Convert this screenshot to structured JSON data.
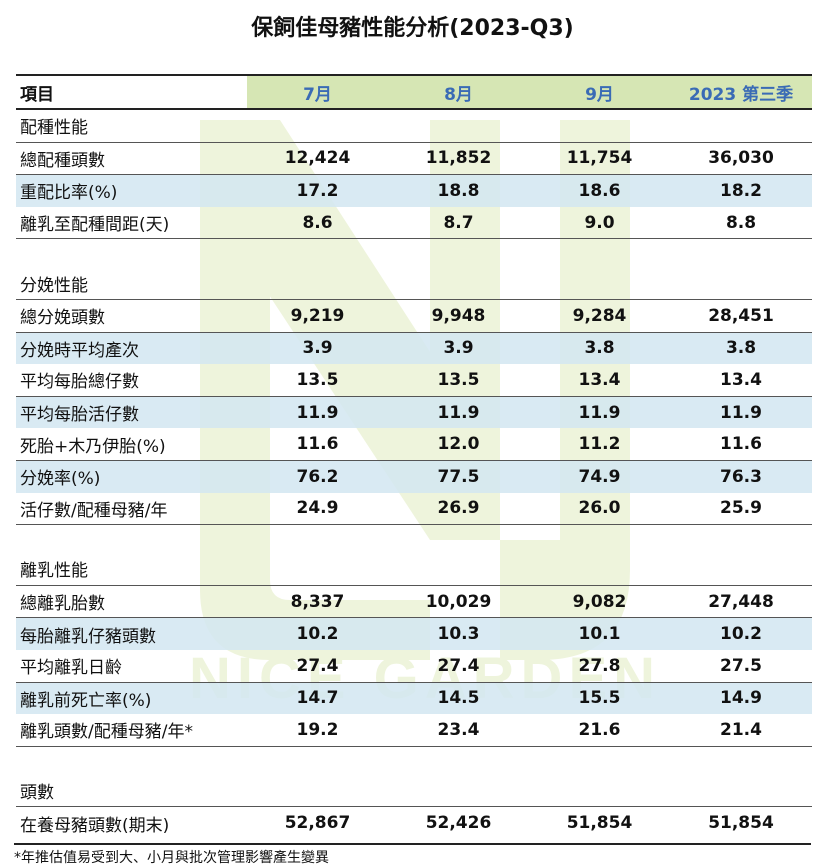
{
  "title": "保飼佳母豬性能分析(2023-Q3)",
  "header": {
    "item": "項目",
    "cols": [
      "7月",
      "8月",
      "9月",
      "2023 第三季"
    ]
  },
  "sections": [
    {
      "name": "配種性能",
      "rows": [
        {
          "label": "總配種頭數",
          "values": [
            "12,424",
            "11,852",
            "11,754",
            "36,030"
          ]
        },
        {
          "label": "重配比率(%)",
          "values": [
            "17.2",
            "18.8",
            "18.6",
            "18.2"
          ]
        },
        {
          "label": "離乳至配種間距(天)",
          "values": [
            "8.6",
            "8.7",
            "9.0",
            "8.8"
          ]
        }
      ]
    },
    {
      "name": "分娩性能",
      "rows": [
        {
          "label": "總分娩頭數",
          "values": [
            "9,219",
            "9,948",
            "9,284",
            "28,451"
          ]
        },
        {
          "label": "分娩時平均產次",
          "values": [
            "3.9",
            "3.9",
            "3.8",
            "3.8"
          ]
        },
        {
          "label": "平均每胎總仔數",
          "values": [
            "13.5",
            "13.5",
            "13.4",
            "13.4"
          ]
        },
        {
          "label": "平均每胎活仔數",
          "values": [
            "11.9",
            "11.9",
            "11.9",
            "11.9"
          ]
        },
        {
          "label": "死胎+木乃伊胎(%)",
          "values": [
            "11.6",
            "12.0",
            "11.2",
            "11.6"
          ]
        },
        {
          "label": "分娩率(%)",
          "values": [
            "76.2",
            "77.5",
            "74.9",
            "76.3"
          ]
        },
        {
          "label": "活仔數/配種母豬/年",
          "values": [
            "24.9",
            "26.9",
            "26.0",
            "25.9"
          ]
        }
      ]
    },
    {
      "name": "離乳性能",
      "rows": [
        {
          "label": "總離乳胎數",
          "values": [
            "8,337",
            "10,029",
            "9,082",
            "27,448"
          ]
        },
        {
          "label": "每胎離乳仔豬頭數",
          "values": [
            "10.2",
            "10.3",
            "10.1",
            "10.2"
          ]
        },
        {
          "label": "平均離乳日齡",
          "values": [
            "27.4",
            "27.4",
            "27.8",
            "27.5"
          ]
        },
        {
          "label": "離乳前死亡率(%)",
          "values": [
            "14.7",
            "14.5",
            "15.5",
            "14.9"
          ]
        },
        {
          "label": "離乳頭數/配種母豬/年*",
          "values": [
            "19.2",
            "23.4",
            "21.6",
            "21.4"
          ]
        }
      ]
    },
    {
      "name": "頭數",
      "rows": [
        {
          "label": "在養母豬頭數(期末)",
          "values": [
            "52,867",
            "52,426",
            "51,854",
            "51,854"
          ]
        }
      ]
    }
  ],
  "watermark": {
    "text": "NICE GARDEN",
    "color": "#eef4dc"
  },
  "footnote": "*年推估值易受到大、小月與批次管理影響產生變異",
  "colors": {
    "header_bg": "#d6e6b4",
    "header_text": "#3a6bb5",
    "row_shade": "#d2e6f1"
  }
}
